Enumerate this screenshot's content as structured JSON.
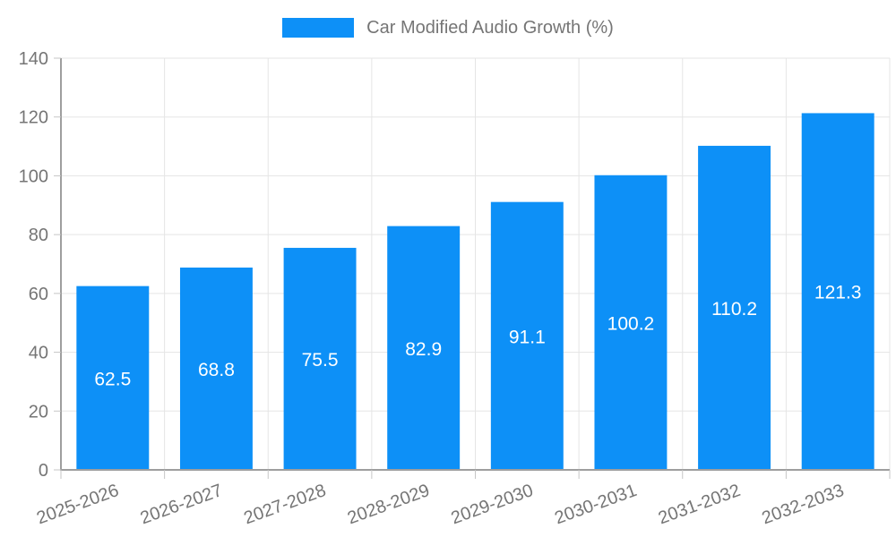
{
  "chart_data": {
    "type": "bar",
    "title": "Car Modified Audio Growth (%)",
    "categories": [
      "2025-2026",
      "2026-2027",
      "2027-2028",
      "2028-2029",
      "2029-2030",
      "2030-2031",
      "2031-2032",
      "2032-2033"
    ],
    "values": [
      62.5,
      68.8,
      75.5,
      82.9,
      91.1,
      100.2,
      110.2,
      121.3
    ],
    "value_labels": [
      "62.5",
      "68.8",
      "75.5",
      "82.9",
      "91.1",
      "100.2",
      "110.2",
      "121.3"
    ],
    "xlabel": "",
    "ylabel": "",
    "ylim": [
      0,
      140
    ],
    "ytick_step": 20,
    "yticks": [
      0,
      20,
      40,
      60,
      80,
      100,
      120,
      140
    ],
    "grid": true,
    "legend_position": "top-center",
    "x_label_rotation_deg": -20,
    "bar_color": "#0d90f7",
    "value_label_color": "#ffffff",
    "axis_text_color": "#757575",
    "axis_line_color": "#9e9e9e",
    "gridline_color": "#e5e5e5",
    "tick_color": "#c6c6c6"
  }
}
